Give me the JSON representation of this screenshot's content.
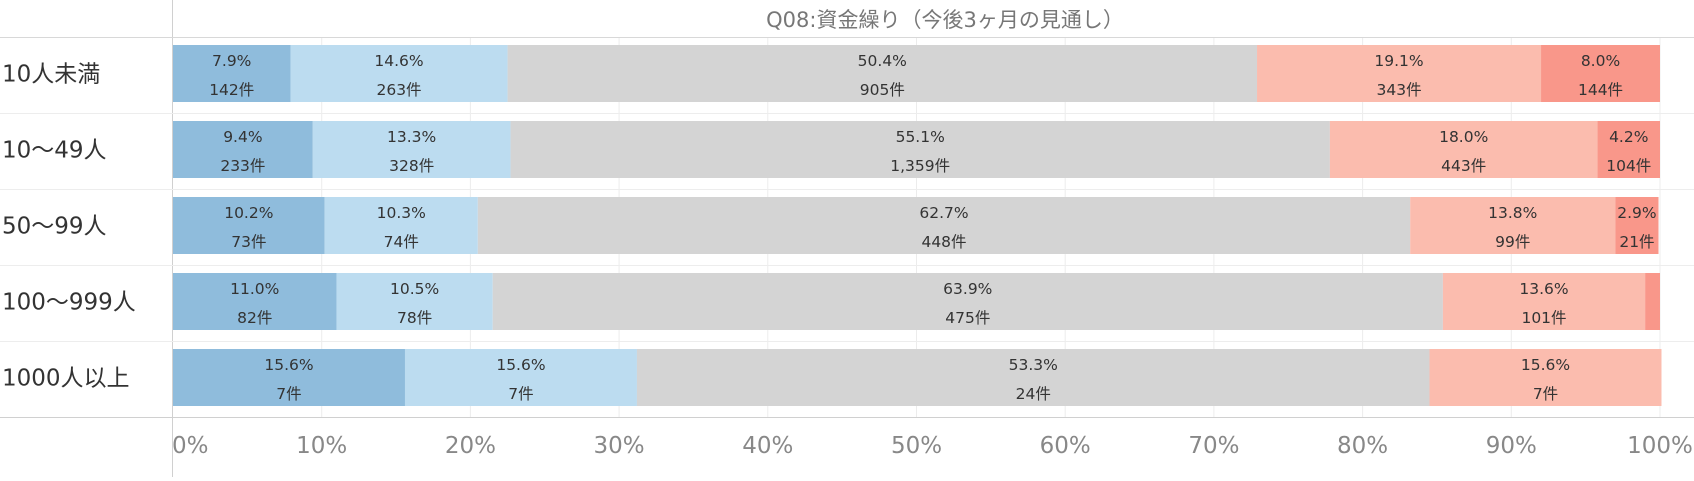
{
  "chart_data": {
    "type": "bar",
    "orientation": "horizontal",
    "stacked": "100%",
    "title": "Q08:資金繰り（今後3ヶ月の見通し）",
    "categories": [
      "10人未満",
      "10～49人",
      "50～99人",
      "100～999人",
      "1000人以上"
    ],
    "xlim": [
      0,
      100
    ],
    "x_ticks": [
      "0%",
      "10%",
      "20%",
      "30%",
      "40%",
      "50%",
      "60%",
      "70%",
      "80%",
      "90%",
      "100%"
    ],
    "grid": true,
    "series": [
      {
        "color": "#8fbcdc",
        "values": [
          7.9,
          9.4,
          10.2,
          11.0,
          15.6
        ],
        "pct_labels": [
          "7.9%",
          "9.4%",
          "10.2%",
          "11.0%",
          "15.6%"
        ],
        "count_labels": [
          "142件",
          "233件",
          "73件",
          "82件",
          "7件"
        ]
      },
      {
        "color": "#bcdcf0",
        "values": [
          14.6,
          13.3,
          10.3,
          10.5,
          15.6
        ],
        "pct_labels": [
          "14.6%",
          "13.3%",
          "10.3%",
          "10.5%",
          "15.6%"
        ],
        "count_labels": [
          "263件",
          "328件",
          "74件",
          "78件",
          "7件"
        ]
      },
      {
        "color": "#d4d4d4",
        "values": [
          50.4,
          55.1,
          62.7,
          63.9,
          53.3
        ],
        "pct_labels": [
          "50.4%",
          "55.1%",
          "62.7%",
          "63.9%",
          "53.3%"
        ],
        "count_labels": [
          "905件",
          "1,359件",
          "448件",
          "475件",
          "24件"
        ]
      },
      {
        "color": "#fbbcae",
        "values": [
          19.1,
          18.0,
          13.8,
          13.6,
          15.6
        ],
        "pct_labels": [
          "19.1%",
          "18.0%",
          "13.8%",
          "13.6%",
          "15.6%"
        ],
        "count_labels": [
          "343件",
          "443件",
          "99件",
          "101件",
          "7件"
        ]
      },
      {
        "color": "#f9978a",
        "values": [
          8.0,
          4.2,
          2.9,
          1.0,
          0
        ],
        "pct_labels": [
          "8.0%",
          "4.2%",
          "2.9%",
          "",
          ""
        ],
        "count_labels": [
          "144件",
          "104件",
          "21件",
          "",
          ""
        ]
      }
    ]
  }
}
